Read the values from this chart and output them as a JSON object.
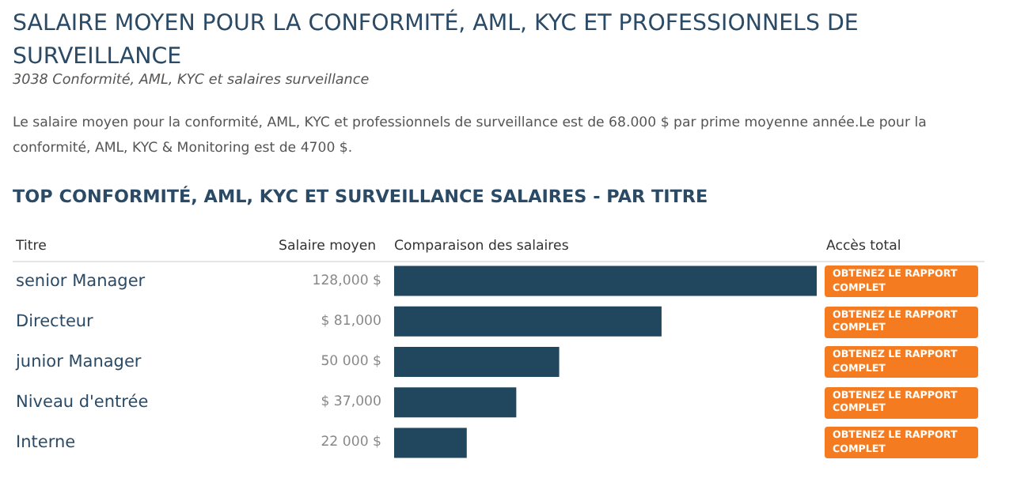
{
  "chart_data": {
    "type": "bar",
    "orientation": "horizontal",
    "title": "SALAIRE MOYEN POUR LA CONFORMITÉ, AML, KYC ET PROFESSIONNELS DE SURVEILLANCE",
    "subtitle": "3038 Conformité, AML, KYC et salaires surveillance",
    "annotations": [
      "Le salaire moyen pour la conformité, AML, KYC et professionnels de surveillance est de 68.000 $ par prime moyenne année.Le pour la conformité, AML, KYC & Monitoring est de 4700 $.",
      "TOP CONFORMITÉ, AML, KYC ET SURVEILLANCE SALAIRES - PAR TITRE",
      "Titre",
      "Salaire moyen",
      "Comparaison des salaires",
      "Accès total",
      "OBTENEZ LE RAPPORT COMPLET",
      "OBTENEZ LE RAPPORT COMPLET",
      "OBTENEZ LE RAPPORT COMPLET",
      "OBTENEZ LE RAPPORT COMPLET",
      "OBTENEZ LE RAPPORT COMPLET"
    ],
    "categories": [
      "senior Manager",
      "Directeur",
      "junior Manager",
      "Niveau d'entrée",
      "Interne"
    ],
    "values": [
      128000,
      81000,
      50000,
      37000,
      22000
    ],
    "value_labels": [
      "128,000 $",
      "$ 81,000",
      "50 000 $",
      "$ 37,000",
      "22 000 $"
    ],
    "color": "#21475f",
    "tick_labels": "y"
  }
}
